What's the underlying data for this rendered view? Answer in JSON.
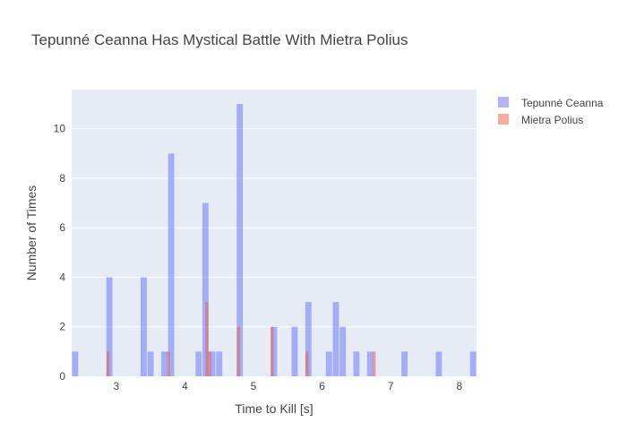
{
  "chart_data": {
    "type": "histogram",
    "title": "Tepunné Ceanna Has Mystical Battle With Mietra Polius",
    "xlabel": "Time to Kill [s]",
    "ylabel": "Number of Times",
    "xlim": [
      2.35,
      8.25
    ],
    "ylim": [
      0,
      11.58
    ],
    "bin_width": 0.1,
    "x_ticks": [
      3,
      4,
      5,
      6,
      7,
      8
    ],
    "y_ticks": [
      0,
      2,
      4,
      6,
      8,
      10
    ],
    "grid": true,
    "legend_position": "top-right",
    "series": [
      {
        "name": "Tepunné Ceanna",
        "color": "#636efa",
        "bins": [
          {
            "x0": 2.35,
            "count": 1
          },
          {
            "x0": 2.85,
            "count": 4
          },
          {
            "x0": 3.35,
            "count": 4
          },
          {
            "x0": 3.45,
            "count": 1
          },
          {
            "x0": 3.65,
            "count": 1
          },
          {
            "x0": 3.75,
            "count": 9
          },
          {
            "x0": 4.15,
            "count": 1
          },
          {
            "x0": 4.25,
            "count": 7
          },
          {
            "x0": 4.35,
            "count": 1
          },
          {
            "x0": 4.45,
            "count": 1
          },
          {
            "x0": 4.75,
            "count": 11
          },
          {
            "x0": 5.25,
            "count": 2
          },
          {
            "x0": 5.55,
            "count": 2
          },
          {
            "x0": 5.75,
            "count": 3
          },
          {
            "x0": 6.05,
            "count": 1
          },
          {
            "x0": 6.15,
            "count": 3
          },
          {
            "x0": 6.25,
            "count": 2
          },
          {
            "x0": 6.45,
            "count": 1
          },
          {
            "x0": 6.65,
            "count": 1
          },
          {
            "x0": 7.15,
            "count": 1
          },
          {
            "x0": 7.65,
            "count": 1
          },
          {
            "x0": 8.15,
            "count": 1
          }
        ]
      },
      {
        "name": "Mietra Polius",
        "color": "#ef553b",
        "bins": [
          {
            "x0": 2.855,
            "count": 1
          },
          {
            "x0": 3.735,
            "count": 1
          },
          {
            "x0": 4.295,
            "count": 3
          },
          {
            "x0": 4.335,
            "count": 1
          },
          {
            "x0": 4.755,
            "count": 2
          },
          {
            "x0": 5.245,
            "count": 2
          },
          {
            "x0": 5.755,
            "count": 1
          },
          {
            "x0": 6.735,
            "count": 1
          }
        ]
      }
    ]
  }
}
